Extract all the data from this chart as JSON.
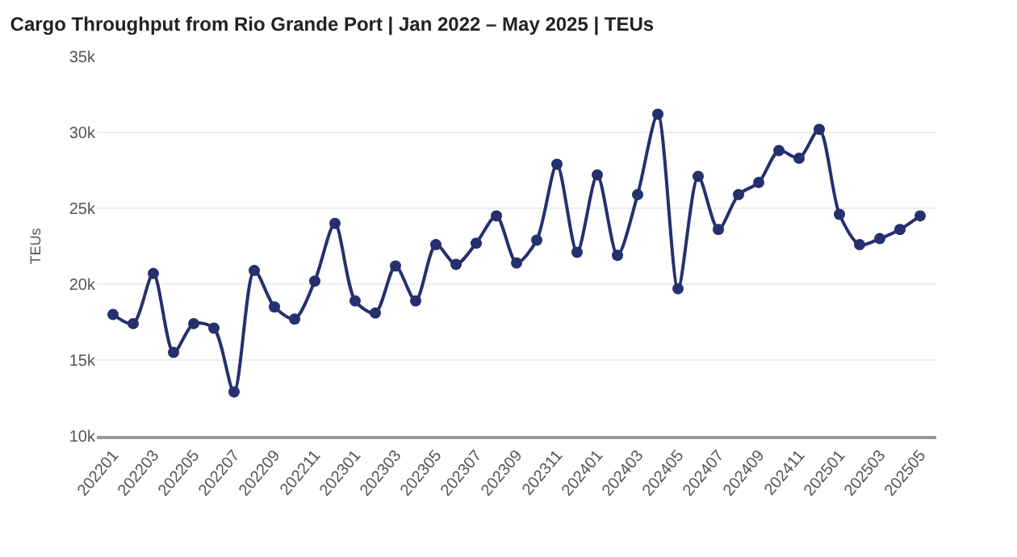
{
  "chart_data": {
    "type": "line",
    "title": "Cargo Throughput from Rio Grande Port | Jan 2022 – May 2025 | TEUs",
    "ylabel": "TEUs",
    "categories": [
      "202201",
      null,
      "202203",
      null,
      "202205",
      null,
      "202207",
      null,
      "202209",
      null,
      "202211",
      null,
      "202301",
      null,
      "202303",
      null,
      "202305",
      null,
      "202307",
      null,
      "202309",
      null,
      "202311",
      null,
      "202401",
      null,
      "202403",
      null,
      "202405",
      null,
      "202407",
      null,
      "202409",
      null,
      "202411",
      null,
      "202501",
      null,
      "202503",
      null,
      "202505"
    ],
    "series": [
      {
        "color": "#26306e",
        "values": [
          18000,
          17400,
          20700,
          15500,
          17400,
          17100,
          12900,
          20900,
          18500,
          17700,
          20200,
          24000,
          18900,
          18100,
          21200,
          18900,
          22600,
          21300,
          22700,
          24500,
          21400,
          22900,
          27900,
          22100,
          27200,
          21900,
          25900,
          31200,
          19700,
          27100,
          23600,
          25900,
          26700,
          28800,
          28300,
          30200,
          24600,
          22600,
          23000,
          23600,
          24500
        ]
      }
    ],
    "ylim": [
      10000,
      35000
    ],
    "yticks": [
      {
        "value": 10000,
        "label": "10k"
      },
      {
        "value": 15000,
        "label": "15k"
      },
      {
        "value": 20000,
        "label": "20k"
      },
      {
        "value": 25000,
        "label": "25k"
      },
      {
        "value": 30000,
        "label": "30k"
      },
      {
        "value": 35000,
        "label": "35k"
      }
    ],
    "grid": "y",
    "marker": "circle",
    "line_style": "solid"
  }
}
